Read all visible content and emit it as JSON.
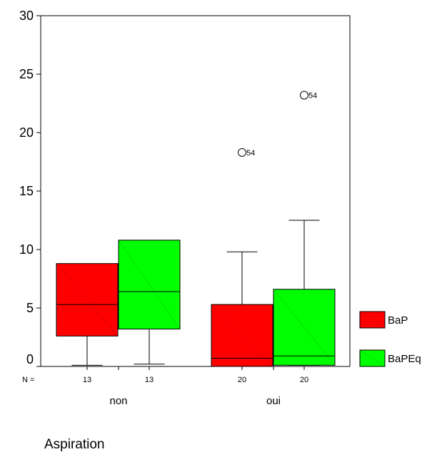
{
  "chart_data": {
    "type": "boxplot",
    "xlabel": "Aspiration",
    "ylim": [
      0,
      30
    ],
    "yticks": [
      0,
      5,
      10,
      15,
      20,
      25,
      30
    ],
    "n_prefix": "N =",
    "legend_position": "right",
    "grid": false,
    "series": [
      {
        "name": "BaP",
        "color": "#ff0000"
      },
      {
        "name": "BaPEq",
        "color": "#00ff00"
      }
    ],
    "groups": [
      {
        "label": "non",
        "boxes": [
          {
            "series": "BaP",
            "n": "13",
            "min": 0.1,
            "q1": 2.6,
            "median": 5.3,
            "q3": 8.8,
            "max": 8.8,
            "outliers": []
          },
          {
            "series": "BaPEq",
            "n": "13",
            "min": 0.2,
            "q1": 3.2,
            "median": 6.4,
            "q3": 10.8,
            "max": 10.8,
            "outliers": []
          }
        ]
      },
      {
        "label": "oui",
        "boxes": [
          {
            "series": "BaP",
            "n": "20",
            "min": 0.0,
            "q1": 0.0,
            "median": 0.7,
            "q3": 5.3,
            "max": 9.8,
            "outliers": [
              {
                "value": 18.3,
                "label": "54"
              }
            ]
          },
          {
            "series": "BaPEq",
            "n": "20",
            "min": 0.1,
            "q1": 0.1,
            "median": 0.9,
            "q3": 6.6,
            "max": 12.5,
            "outliers": [
              {
                "value": 23.2,
                "label": "54"
              }
            ]
          }
        ]
      }
    ]
  }
}
